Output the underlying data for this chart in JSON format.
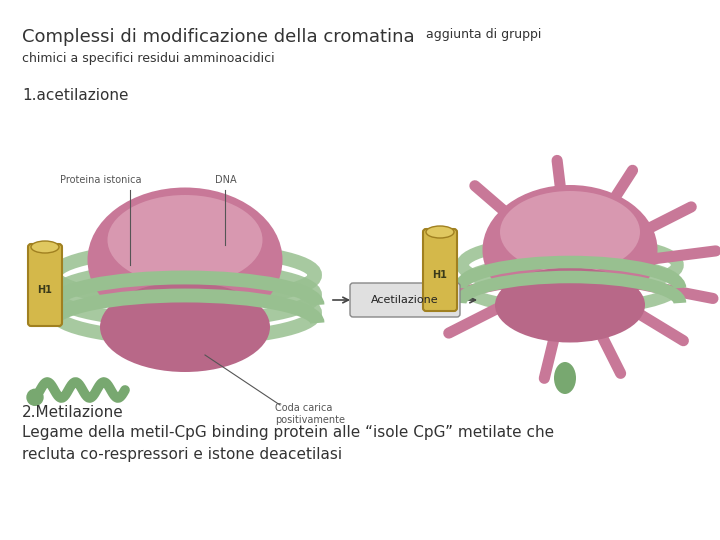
{
  "bg_color": "#ffffff",
  "title_main": "Complessi di modificazione della cromatina",
  "title_small": " aggiunta di gruppi",
  "title_line2": "chimici a specifici residui amminoacidici",
  "section1": "1.acetilazione",
  "section2": "2.Metilazione",
  "section2_text": "Legame della metil-CpG binding protein alle “isole CpG” metilate che\nrecluta co-respressori e istone deacetilasi",
  "title_main_fontsize": 13,
  "title_small_fontsize": 9,
  "section_fontsize": 11,
  "body_fontsize": 11,
  "label_fontsize": 7,
  "fig_width": 7.2,
  "fig_height": 5.4,
  "pink_color": "#c87898",
  "pink_dark": "#b86888",
  "green_color": "#98c090",
  "green_dark": "#78a870",
  "yellow_color": "#d4b84a",
  "yellow_edge": "#a08020",
  "arrow_box_color": "#e0e0e0",
  "arrow_box_edge": "#888888",
  "text_color": "#333333",
  "label_color": "#555555"
}
